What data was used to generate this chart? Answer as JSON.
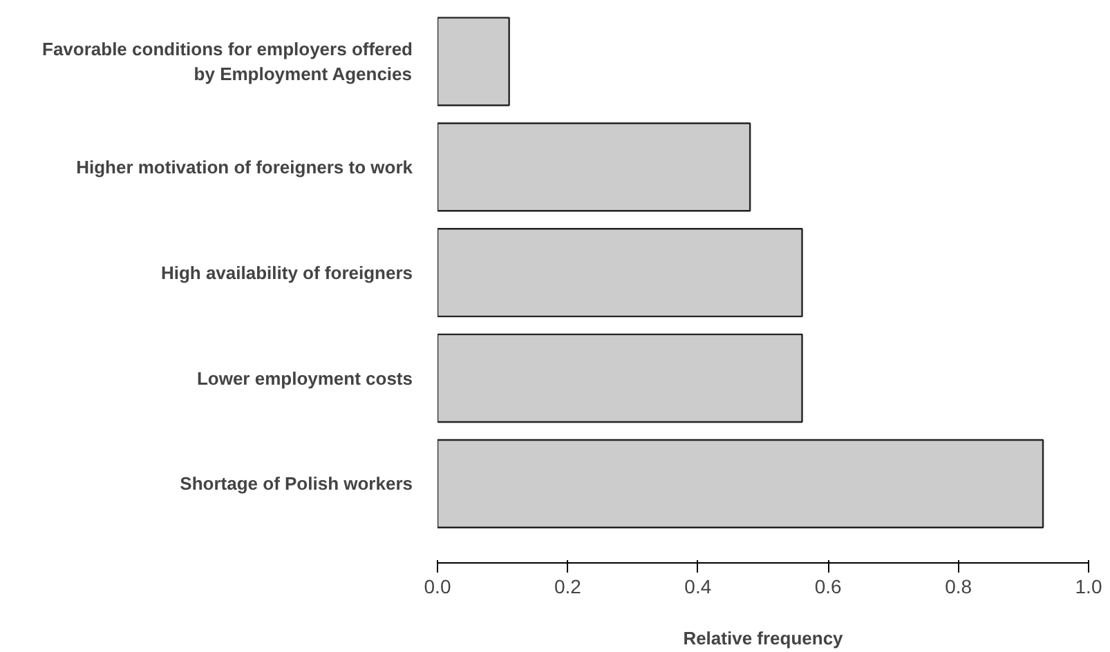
{
  "chart_data": {
    "type": "bar",
    "orientation": "horizontal",
    "xlabel": "Relative frequency",
    "categories": [
      "Favorable conditions for employers offered by Employment Agencies",
      "Higher motivation of foreigners to work",
      "High availability of foreigners",
      "Lower employment costs",
      "Shortage of Polish workers"
    ],
    "values": [
      0.11,
      0.48,
      0.56,
      0.56,
      0.93
    ],
    "color": "#cccccc",
    "xlim": [
      0,
      1
    ],
    "xticks": [
      {
        "value": 0,
        "label": "0.0"
      },
      {
        "value": 0.2,
        "label": "0.2"
      },
      {
        "value": 0.4,
        "label": "0.4"
      },
      {
        "value": 0.6,
        "label": "0.6"
      },
      {
        "value": 0.8,
        "label": "0.8"
      },
      {
        "value": 1,
        "label": "1.0"
      }
    ],
    "grid": false
  }
}
